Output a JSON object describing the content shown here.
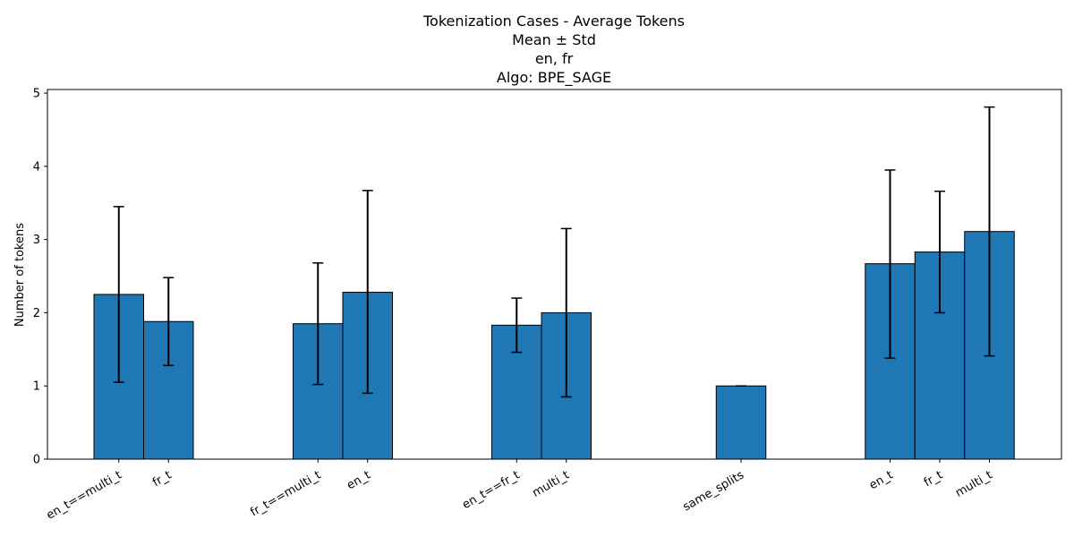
{
  "chart_data": {
    "type": "bar",
    "title_lines": [
      "Tokenization Cases - Average Tokens",
      "Mean ± Std",
      "en, fr",
      "Algo: BPE_SAGE"
    ],
    "xlabel": "",
    "ylabel": "Number of tokens",
    "ylim": [
      0,
      5.05
    ],
    "yticks": [
      "0",
      "1",
      "2",
      "3",
      "4",
      "5"
    ],
    "bar_color": "#1f77b4",
    "grid": false,
    "legend": "none",
    "groups": [
      {
        "bars": [
          {
            "label": "en_t==multi_t",
            "mean": 2.25,
            "err_low": 1.05,
            "err_high": 3.45
          },
          {
            "label": "fr_t",
            "mean": 1.88,
            "err_low": 1.28,
            "err_high": 2.48
          }
        ]
      },
      {
        "bars": [
          {
            "label": "fr_t==multi_t",
            "mean": 1.85,
            "err_low": 1.02,
            "err_high": 2.68
          },
          {
            "label": "en_t",
            "mean": 2.28,
            "err_low": 0.9,
            "err_high": 3.67
          }
        ]
      },
      {
        "bars": [
          {
            "label": "en_t==fr_t",
            "mean": 1.83,
            "err_low": 1.46,
            "err_high": 2.2
          },
          {
            "label": "multi_t",
            "mean": 2.0,
            "err_low": 0.85,
            "err_high": 3.15
          }
        ]
      },
      {
        "bars": [
          {
            "label": "same_splits",
            "mean": 1.0,
            "err_low": 1.0,
            "err_high": 1.0
          }
        ]
      },
      {
        "bars": [
          {
            "label": "en_t",
            "mean": 2.67,
            "err_low": 1.38,
            "err_high": 3.95
          },
          {
            "label": "fr_t",
            "mean": 2.83,
            "err_low": 2.0,
            "err_high": 3.66
          },
          {
            "label": "multi_t",
            "mean": 3.11,
            "err_low": 1.41,
            "err_high": 4.81
          }
        ]
      }
    ]
  }
}
